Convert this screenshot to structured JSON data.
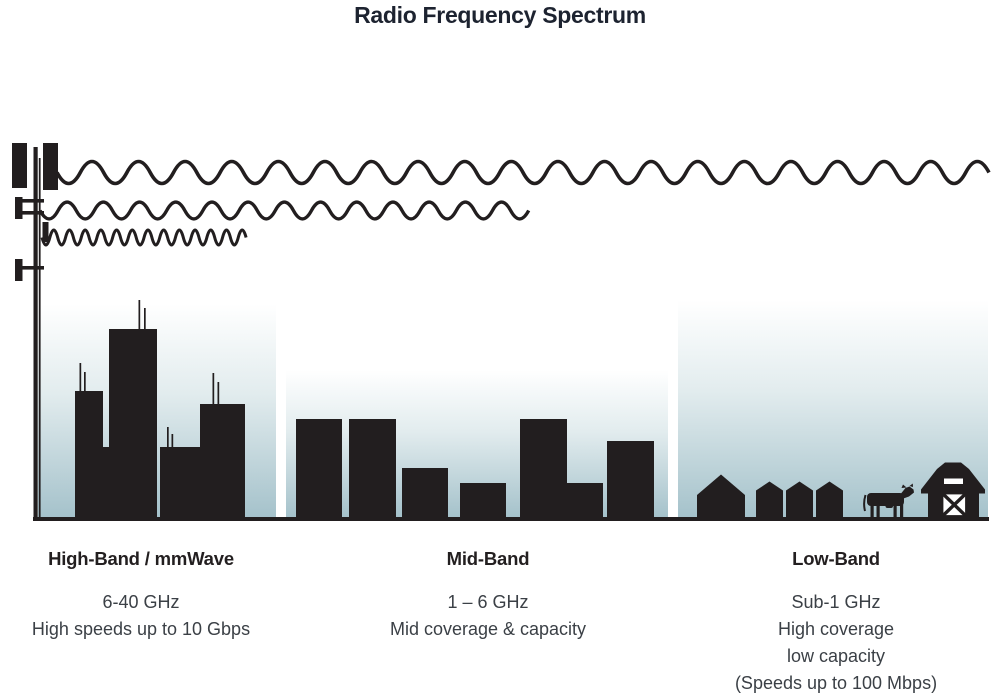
{
  "title": "Radio Frequency Spectrum",
  "bands": [
    {
      "name": "High-Band / mmWave",
      "frequency": "6-40 GHz",
      "description_lines": [
        "High speeds up to 10 Gbps"
      ],
      "scene": "dense-city-skyscrapers",
      "wave": "shortest-wavelength-shortest-reach"
    },
    {
      "name": "Mid-Band",
      "frequency": "1 – 6 GHz",
      "description_lines": [
        "Mid coverage & capacity"
      ],
      "scene": "mid-rise-town-buildings",
      "wave": "medium-wavelength-medium-reach"
    },
    {
      "name": "Low-Band",
      "frequency": "Sub-1 GHz",
      "description_lines": [
        "High coverage",
        "low capacity",
        "(Speeds up to 100 Mbps)"
      ],
      "scene": "rural-houses-cow-barn",
      "wave": "longest-wavelength-longest-reach"
    }
  ],
  "colors": {
    "silhouette_ink": "#221e1f",
    "title_text": "#1d2330",
    "band_name_text": "#231f20",
    "band_body_text": "#3b4046",
    "sky_top": "#ffffff",
    "sky_mid": "#e2ecee",
    "sky_bottom": "#a5c2cb"
  }
}
